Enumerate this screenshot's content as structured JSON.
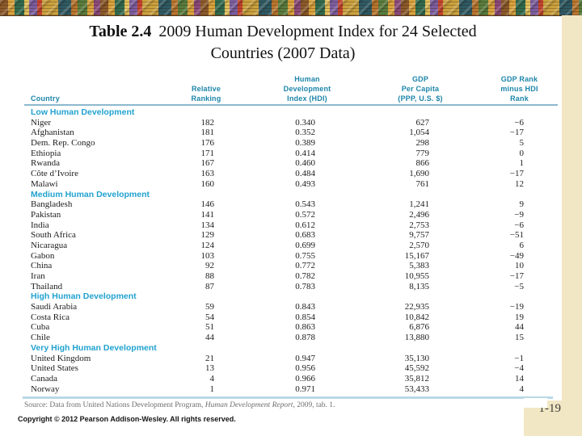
{
  "slide": {
    "title": {
      "bold": "Table 2.4",
      "line1_rest": "2009 Human Development Index for 24 Selected",
      "line2": "Countries (2007 Data)"
    },
    "page_number": "1-19",
    "copyright": "Copyright © 2012 Pearson Addison-Wesley. All rights reserved."
  },
  "table": {
    "columns": [
      {
        "lines": [
          "Country"
        ]
      },
      {
        "lines": [
          "Relative",
          "Ranking"
        ]
      },
      {
        "lines": [
          "Human",
          "Development",
          "Index (HDI)"
        ]
      },
      {
        "lines": [
          "GDP",
          "Per Capita",
          "(PPP, U.S. $)"
        ]
      },
      {
        "lines": [
          "GDP Rank",
          "minus HDI",
          "Rank"
        ]
      }
    ],
    "sections": [
      {
        "label": "Low Human Development",
        "rows": [
          [
            "Niger",
            "182",
            "0.340",
            "627",
            "−6"
          ],
          [
            "Afghanistan",
            "181",
            "0.352",
            "1,054",
            "−17"
          ],
          [
            "Dem. Rep. Congo",
            "176",
            "0.389",
            "298",
            "5"
          ],
          [
            "Ethiopia",
            "171",
            "0.414",
            "779",
            "0"
          ],
          [
            "Rwanda",
            "167",
            "0.460",
            "866",
            "1"
          ],
          [
            "Côte d’Ivoire",
            "163",
            "0.484",
            "1,690",
            "−17"
          ],
          [
            "Malawi",
            "160",
            "0.493",
            "761",
            "12"
          ]
        ]
      },
      {
        "label": "Medium Human Development",
        "rows": [
          [
            "Bangladesh",
            "146",
            "0.543",
            "1,241",
            "9"
          ],
          [
            "Pakistan",
            "141",
            "0.572",
            "2,496",
            "−9"
          ],
          [
            "India",
            "134",
            "0.612",
            "2,753",
            "−6"
          ],
          [
            "South Africa",
            "129",
            "0.683",
            "9,757",
            "−51"
          ],
          [
            "Nicaragua",
            "124",
            "0.699",
            "2,570",
            "6"
          ],
          [
            "Gabon",
            "103",
            "0.755",
            "15,167",
            "−49"
          ],
          [
            "China",
            "92",
            "0.772",
            "5,383",
            "10"
          ],
          [
            "Iran",
            "88",
            "0.782",
            "10,955",
            "−17"
          ],
          [
            "Thailand",
            "87",
            "0.783",
            "8,135",
            "−5"
          ]
        ]
      },
      {
        "label": "High Human Development",
        "rows": [
          [
            "Saudi Arabia",
            "59",
            "0.843",
            "22,935",
            "−19"
          ],
          [
            "Costa Rica",
            "54",
            "0.854",
            "10,842",
            "19"
          ],
          [
            "Cuba",
            "51",
            "0.863",
            "6,876",
            "44"
          ],
          [
            "Chile",
            "44",
            "0.878",
            "13,880",
            "15"
          ]
        ]
      },
      {
        "label": "Very High Human Development",
        "rows": [
          [
            "United Kingdom",
            "21",
            "0.947",
            "35,130",
            "−1"
          ],
          [
            "United States",
            "13",
            "0.956",
            "45,592",
            "−4"
          ],
          [
            "Canada",
            "4",
            "0.966",
            "35,812",
            "14"
          ],
          [
            "Norway",
            "1",
            "0.971",
            "53,433",
            "4"
          ]
        ]
      }
    ],
    "source": {
      "prefix": "Source: Data from United Nations Development Program, ",
      "italic": "Human Development Report",
      "suffix": ", 2009, tab. 1."
    }
  },
  "colors": {
    "section_teal": "#21a2cf",
    "column_header_teal": "#1d85aa",
    "tan_background": "#f2e7c4",
    "rule_header": "#8cb8cd",
    "rule_bottom": "#b9d8e6"
  }
}
